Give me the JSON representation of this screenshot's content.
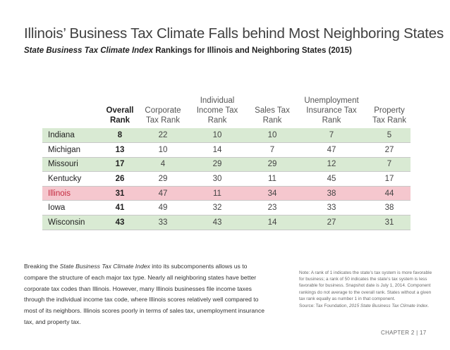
{
  "title": "Illinois’ Business Tax Climate Falls behind Most Neighboring States",
  "subtitle": {
    "italic": "State Business Tax Climate Index",
    "rest": " Rankings for Illinois and Neighboring States (2015)"
  },
  "table": {
    "headers": [
      {
        "line1": "",
        "line2": ""
      },
      {
        "line1": "Overall",
        "line2": "Rank"
      },
      {
        "line1": "Corporate",
        "line2": "Tax Rank"
      },
      {
        "line1": "Individual",
        "line2": "Income Tax Rank"
      },
      {
        "line1": "Sales Tax",
        "line2": "Rank"
      },
      {
        "line1": "Unemployment",
        "line2": "Insurance Tax Rank"
      },
      {
        "line1": "Property",
        "line2": "Tax Rank"
      }
    ],
    "rows": [
      {
        "state": "Indiana",
        "values": [
          "8",
          "22",
          "10",
          "10",
          "7",
          "5"
        ]
      },
      {
        "state": "Michigan",
        "values": [
          "13",
          "10",
          "14",
          "7",
          "47",
          "27"
        ]
      },
      {
        "state": "Missouri",
        "values": [
          "17",
          "4",
          "29",
          "29",
          "12",
          "7"
        ]
      },
      {
        "state": "Kentucky",
        "values": [
          "26",
          "29",
          "30",
          "11",
          "45",
          "17"
        ]
      },
      {
        "state": "Illinois",
        "values": [
          "31",
          "47",
          "11",
          "34",
          "38",
          "44"
        ]
      },
      {
        "state": "Iowa",
        "values": [
          "41",
          "49",
          "32",
          "23",
          "33",
          "38"
        ]
      },
      {
        "state": "Wisconsin",
        "values": [
          "43",
          "33",
          "43",
          "14",
          "27",
          "31"
        ]
      }
    ]
  },
  "body": {
    "part1": "Breaking the ",
    "italic": "State Business Tax Climate Index",
    "part2": " into its subcomponents allows us to compare the structure of each major tax type. Nearly all neighboring states have better corporate tax codes than Illinois. However, many Illinois businesses file income taxes through the individual income tax code, where Illinois scores relatively well compared to most of its neighbors. Illinois scores poorly in terms of sales tax, unemployment insurance tax, and property tax."
  },
  "note": {
    "text": "Note: A rank of 1 indicates the state’s tax system is more favorable for business; a rank of 50 indicates the state’s tax system is less favorable for business. Snapshot date is July 1, 2014. Component rankings do not average to the overall rank. States without a given tax rank equally as number 1 in that component.",
    "source_prefix": "Source: Tax Foundation, ",
    "source_italic": "2015 State Business Tax Climate Index",
    "source_suffix": "."
  },
  "footer": "CHAPTER 2 | 17",
  "colors": {
    "green_row": "#d9ead3",
    "pink_row": "#f5c7ce",
    "highlight_text": "#c42a3f"
  }
}
